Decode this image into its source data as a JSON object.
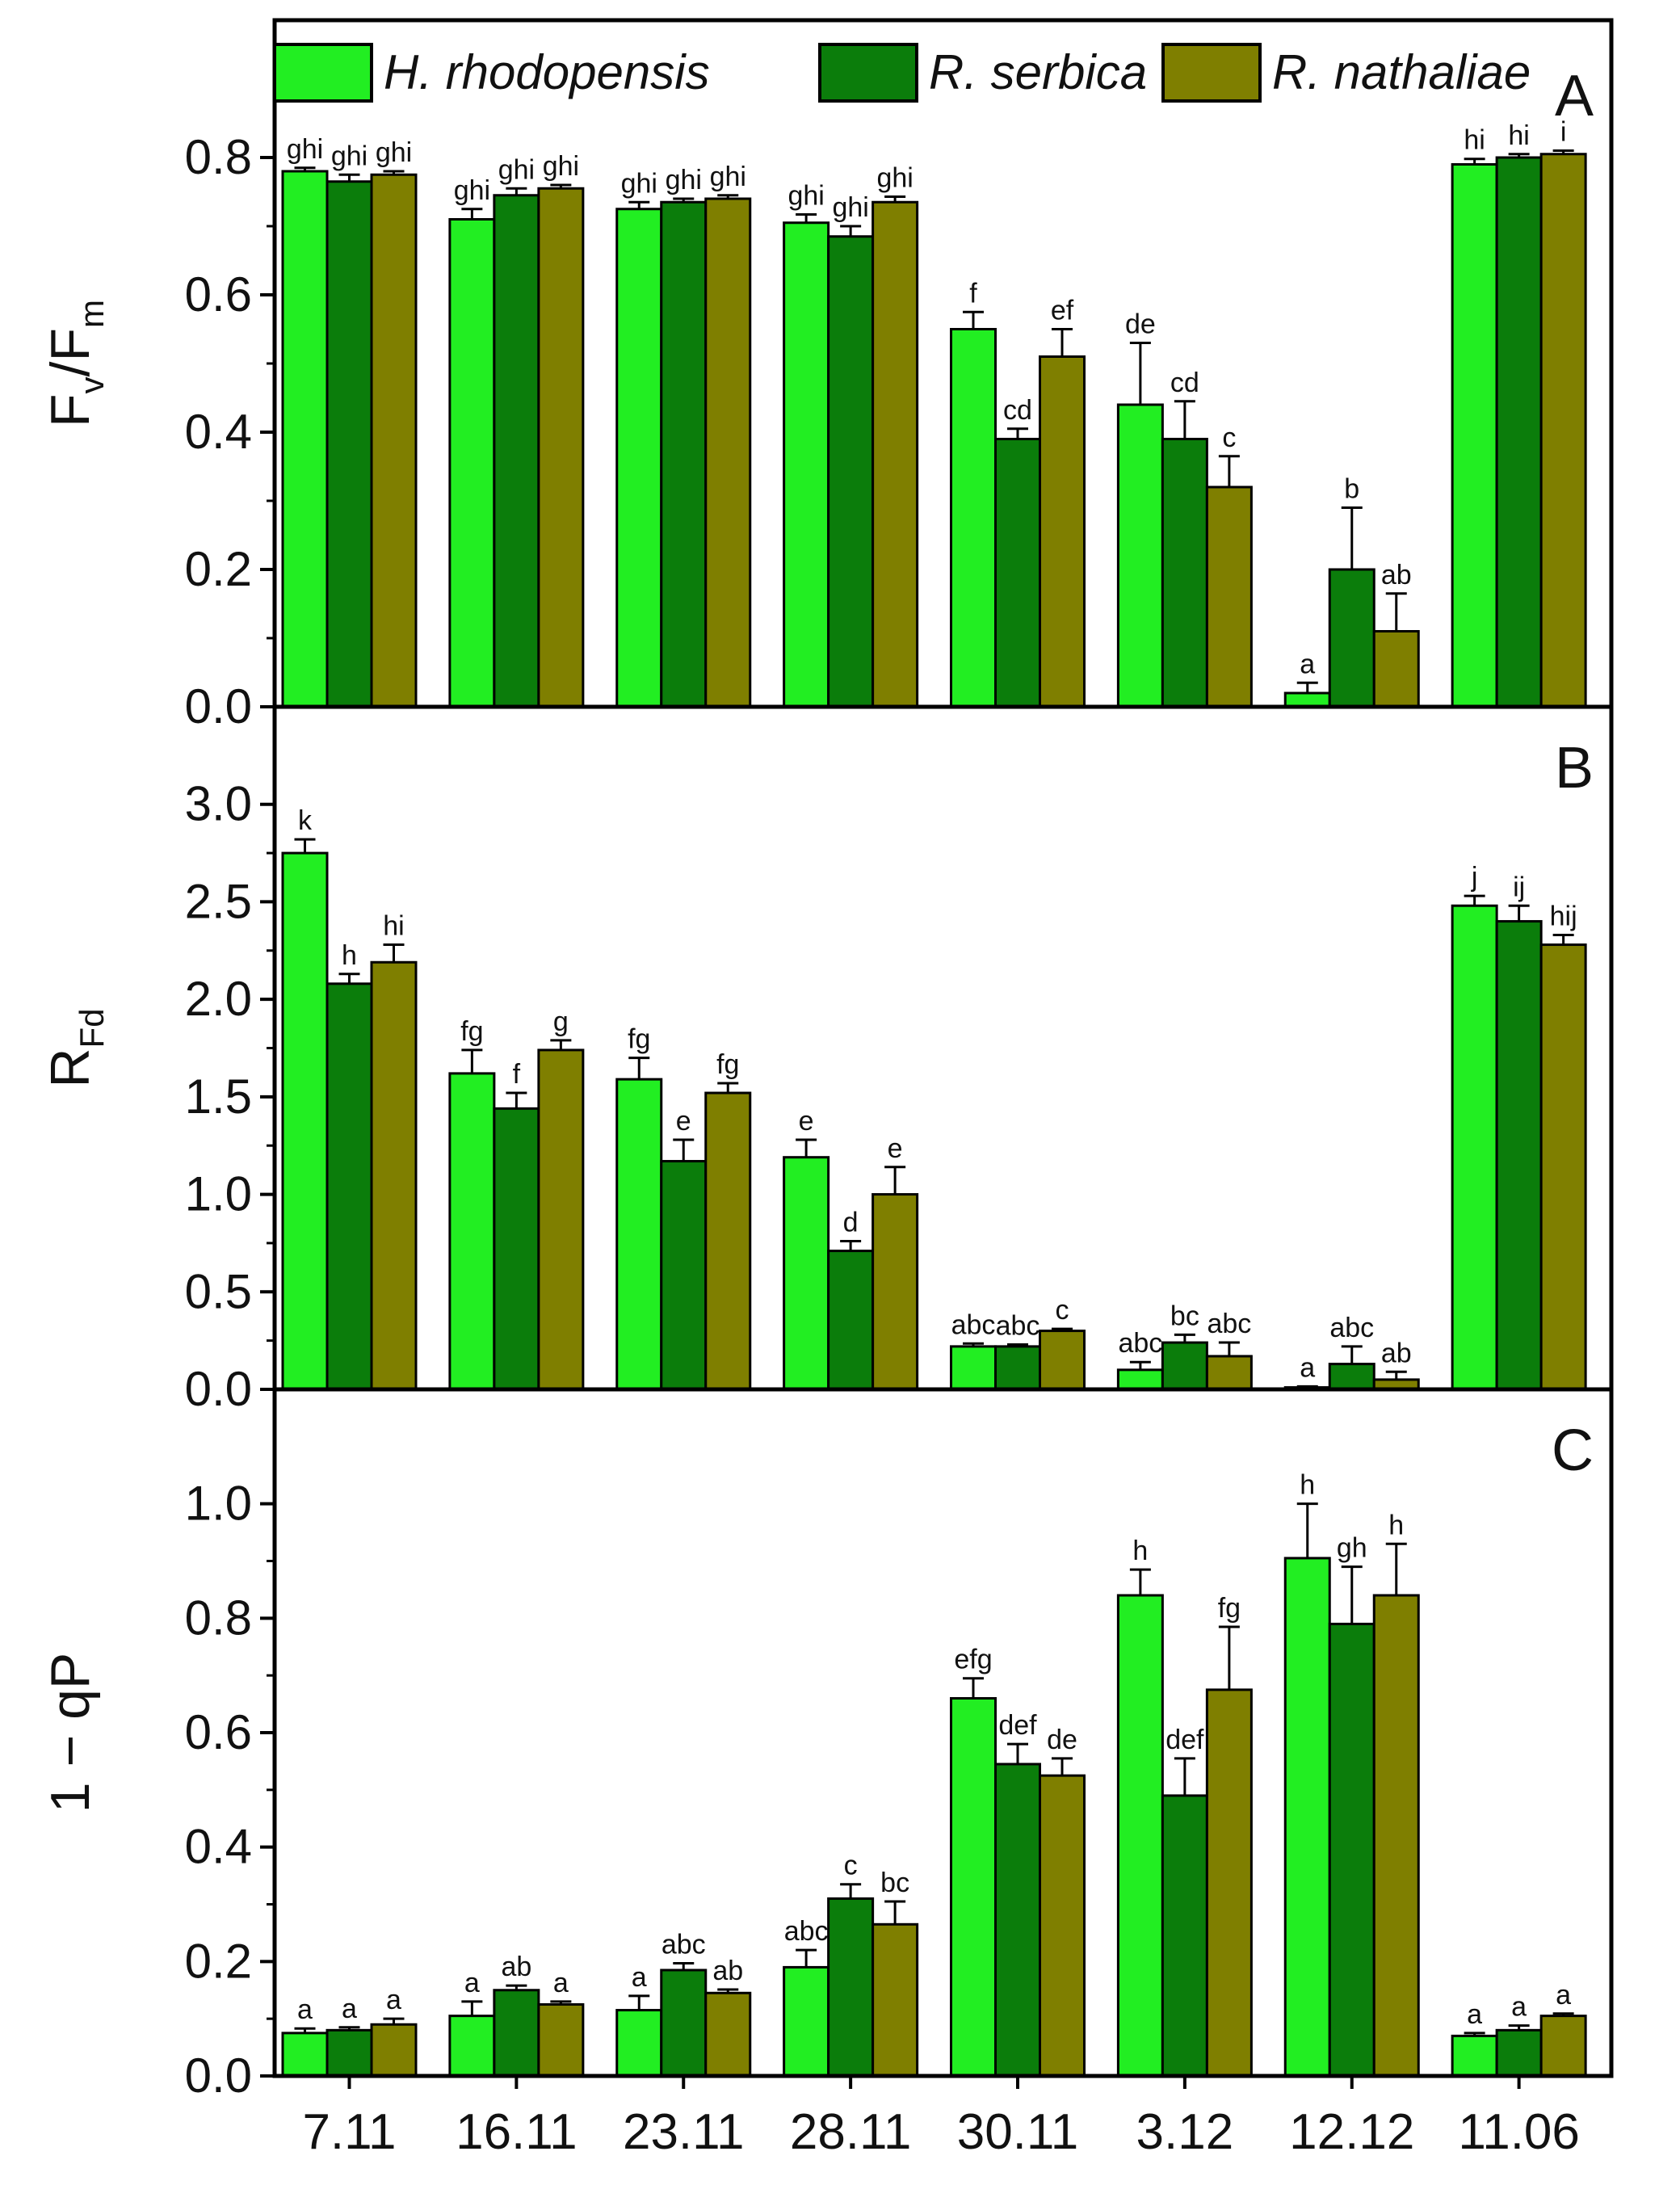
{
  "chart_data": {
    "type": "bar",
    "categories": [
      "7.11",
      "16.11",
      "23.11",
      "28.11",
      "30.11",
      "3.12",
      "12.12",
      "11.06"
    ],
    "legend": [
      {
        "name": "H. rhodopensis",
        "color": "#22ee22"
      },
      {
        "name": "R. serbica",
        "color": "#0b7d0b"
      },
      {
        "name": "R. nathaliae",
        "color": "#7f7f00"
      }
    ],
    "legend_placement": "top-left",
    "panels": [
      {
        "id": "A",
        "letter": "A",
        "ylabel_main": "F",
        "ylabel_sub1": "v",
        "ylabel_mid": "/F",
        "ylabel_sub2": "m",
        "ylim": [
          0,
          1.0
        ],
        "yticks": [
          "0.0",
          "0.2",
          "0.4",
          "0.6",
          "0.8"
        ],
        "ytick_values": [
          0.0,
          0.2,
          0.4,
          0.6,
          0.8
        ],
        "series": [
          {
            "name": "H. rhodopensis",
            "values": [
              0.78,
              0.71,
              0.725,
              0.705,
              0.55,
              0.44,
              0.02,
              0.79
            ],
            "errors": [
              0.005,
              0.015,
              0.01,
              0.012,
              0.025,
              0.09,
              0.015,
              0.008
            ],
            "sig": [
              "ghi",
              "ghi",
              "ghi",
              "ghi",
              "f",
              "de",
              "a",
              "hi"
            ]
          },
          {
            "name": "R. serbica",
            "values": [
              0.765,
              0.745,
              0.735,
              0.685,
              0.39,
              0.39,
              0.2,
              0.8
            ],
            "errors": [
              0.01,
              0.01,
              0.005,
              0.015,
              0.015,
              0.055,
              0.09,
              0.005
            ],
            "sig": [
              "ghi",
              "ghi",
              "ghi",
              "ghi",
              "cd",
              "cd",
              "b",
              "hi"
            ]
          },
          {
            "name": "R. nathaliae",
            "values": [
              0.775,
              0.755,
              0.74,
              0.735,
              0.51,
              0.32,
              0.11,
              0.805
            ],
            "errors": [
              0.005,
              0.005,
              0.005,
              0.008,
              0.04,
              0.045,
              0.055,
              0.005
            ],
            "sig": [
              "ghi",
              "ghi",
              "ghi",
              "ghi",
              "ef",
              "c",
              "ab",
              "i"
            ]
          }
        ]
      },
      {
        "id": "B",
        "letter": "B",
        "ylabel_main": "R",
        "ylabel_sub1": "Fd",
        "ylabel_mid": "",
        "ylabel_sub2": "",
        "ylim": [
          0,
          3.5
        ],
        "yticks": [
          "0.0",
          "0.5",
          "1.0",
          "1.5",
          "2.0",
          "2.5",
          "3.0"
        ],
        "ytick_values": [
          0.0,
          0.5,
          1.0,
          1.5,
          2.0,
          2.5,
          3.0
        ],
        "series": [
          {
            "name": "H. rhodopensis",
            "values": [
              2.75,
              1.62,
              1.59,
              1.19,
              0.22,
              0.1,
              0.01,
              2.48
            ],
            "errors": [
              0.07,
              0.12,
              0.11,
              0.09,
              0.015,
              0.04,
              0.005,
              0.05
            ],
            "sig": [
              "k",
              "fg",
              "fg",
              "e",
              "abc",
              "abc",
              "a",
              "j"
            ]
          },
          {
            "name": "R. serbica",
            "values": [
              2.08,
              1.44,
              1.17,
              0.71,
              0.22,
              0.24,
              0.13,
              2.4
            ],
            "errors": [
              0.05,
              0.08,
              0.11,
              0.05,
              0.01,
              0.04,
              0.09,
              0.08
            ],
            "sig": [
              "h",
              "f",
              "e",
              "d",
              "abc",
              "bc",
              "abc",
              "ij"
            ]
          },
          {
            "name": "R. nathaliae",
            "values": [
              2.19,
              1.74,
              1.52,
              1.0,
              0.3,
              0.17,
              0.05,
              2.28
            ],
            "errors": [
              0.09,
              0.05,
              0.05,
              0.14,
              0.01,
              0.07,
              0.04,
              0.05
            ],
            "sig": [
              "hi",
              "g",
              "fg",
              "e",
              "c",
              "abc",
              "ab",
              "hij"
            ]
          }
        ]
      },
      {
        "id": "C",
        "letter": "C",
        "ylabel_main": "1 − qP",
        "ylabel_sub1": "",
        "ylabel_mid": "",
        "ylabel_sub2": "",
        "ylim": [
          0,
          1.2
        ],
        "yticks": [
          "0.0",
          "0.2",
          "0.4",
          "0.6",
          "0.8",
          "1.0"
        ],
        "ytick_values": [
          0.0,
          0.2,
          0.4,
          0.6,
          0.8,
          1.0
        ],
        "series": [
          {
            "name": "H. rhodopensis",
            "values": [
              0.075,
              0.105,
              0.115,
              0.19,
              0.66,
              0.84,
              0.905,
              0.07
            ],
            "errors": [
              0.008,
              0.025,
              0.025,
              0.03,
              0.035,
              0.045,
              0.095,
              0.005
            ],
            "sig": [
              "a",
              "a",
              "a",
              "abc",
              "efg",
              "h",
              "h",
              "a"
            ]
          },
          {
            "name": "R. serbica",
            "values": [
              0.08,
              0.15,
              0.185,
              0.31,
              0.545,
              0.49,
              0.79,
              0.08
            ],
            "errors": [
              0.005,
              0.008,
              0.012,
              0.025,
              0.035,
              0.065,
              0.1,
              0.008
            ],
            "sig": [
              "a",
              "ab",
              "abc",
              "c",
              "def",
              "def",
              "gh",
              "a"
            ]
          },
          {
            "name": "R. nathaliae",
            "values": [
              0.09,
              0.125,
              0.145,
              0.265,
              0.525,
              0.675,
              0.84,
              0.105
            ],
            "errors": [
              0.01,
              0.005,
              0.006,
              0.04,
              0.03,
              0.11,
              0.09,
              0.004
            ],
            "sig": [
              "a",
              "a",
              "ab",
              "bc",
              "de",
              "fg",
              "h",
              "a"
            ]
          }
        ]
      }
    ]
  }
}
